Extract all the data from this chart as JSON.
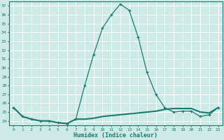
{
  "x": [
    0,
    1,
    2,
    3,
    4,
    5,
    6,
    7,
    8,
    9,
    10,
    11,
    12,
    13,
    14,
    15,
    16,
    17,
    18,
    19,
    20,
    21,
    22,
    23
  ],
  "y_main": [
    25.5,
    24.5,
    24.2,
    24.0,
    24.0,
    23.8,
    23.7,
    24.2,
    28.0,
    31.5,
    34.5,
    36.0,
    37.2,
    36.5,
    33.5,
    29.5,
    27.0,
    25.5,
    25.0,
    25.1,
    25.1,
    24.5,
    24.7,
    25.5
  ],
  "y_flat": [
    25.5,
    24.5,
    24.2,
    24.0,
    24.0,
    23.8,
    23.7,
    24.2,
    24.2,
    24.3,
    24.5,
    24.6,
    24.7,
    24.8,
    24.9,
    25.0,
    25.1,
    25.3,
    25.4,
    25.4,
    25.4,
    25.0,
    24.9,
    25.5
  ],
  "ylim": [
    23.5,
    37.5
  ],
  "xlim": [
    -0.5,
    23.5
  ],
  "yticks": [
    24,
    25,
    26,
    27,
    28,
    29,
    30,
    31,
    32,
    33,
    34,
    35,
    36,
    37
  ],
  "xticks": [
    0,
    1,
    2,
    3,
    4,
    5,
    6,
    7,
    8,
    9,
    10,
    11,
    12,
    13,
    14,
    15,
    16,
    17,
    18,
    19,
    20,
    21,
    22,
    23
  ],
  "xlabel": "Humidex (Indice chaleur)",
  "line_color": "#1a7a6e",
  "bg_color": "#ceeae6",
  "grid_color": "#b0d8d4"
}
